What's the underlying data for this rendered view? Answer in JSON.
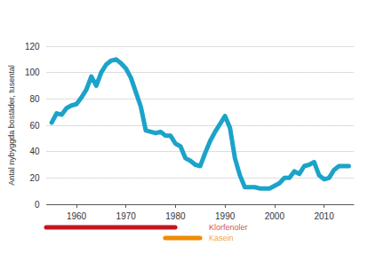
{
  "chart_data": {
    "type": "line",
    "y_label": "Antal nybyggda bostäder, tusental",
    "x": [
      1955,
      1956,
      1957,
      1958,
      1959,
      1960,
      1961,
      1962,
      1963,
      1964,
      1965,
      1966,
      1967,
      1968,
      1969,
      1970,
      1971,
      1972,
      1973,
      1974,
      1975,
      1976,
      1977,
      1978,
      1979,
      1980,
      1981,
      1982,
      1983,
      1984,
      1985,
      1986,
      1987,
      1988,
      1989,
      1990,
      1991,
      1992,
      1993,
      1994,
      1995,
      1996,
      1997,
      1998,
      1999,
      2000,
      2001,
      2002,
      2003,
      2004,
      2005,
      2006,
      2007,
      2008,
      2009,
      2010,
      2011,
      2012,
      2013,
      2014,
      2015
    ],
    "values": [
      62,
      69,
      68,
      73,
      75,
      76,
      81,
      87,
      97,
      90,
      100,
      106,
      109,
      110,
      107,
      103,
      96,
      85,
      74,
      56,
      55,
      54,
      55,
      52,
      52,
      46,
      44,
      35,
      33,
      30,
      29,
      39,
      48,
      55,
      61,
      67,
      58,
      35,
      22,
      13,
      13,
      13,
      12,
      12,
      12,
      14,
      16,
      20,
      20,
      25,
      23,
      29,
      30,
      32,
      22,
      19,
      20,
      26,
      29,
      29,
      29
    ],
    "color": "#1ba3c9",
    "xlim": [
      1954,
      2016
    ],
    "xticks": [
      1960,
      1970,
      1980,
      1990,
      2000,
      2010
    ],
    "ylim": [
      0,
      120
    ],
    "yticks": [
      0,
      20,
      40,
      60,
      80,
      100,
      120
    ],
    "grid": true,
    "ranges": [
      {
        "label": "Klorfenoler",
        "start": 1954,
        "end": 1980,
        "color": "#c4161c"
      },
      {
        "label": "Kasein",
        "start": 1978,
        "end": 1985,
        "color": "#f08c00"
      }
    ]
  }
}
